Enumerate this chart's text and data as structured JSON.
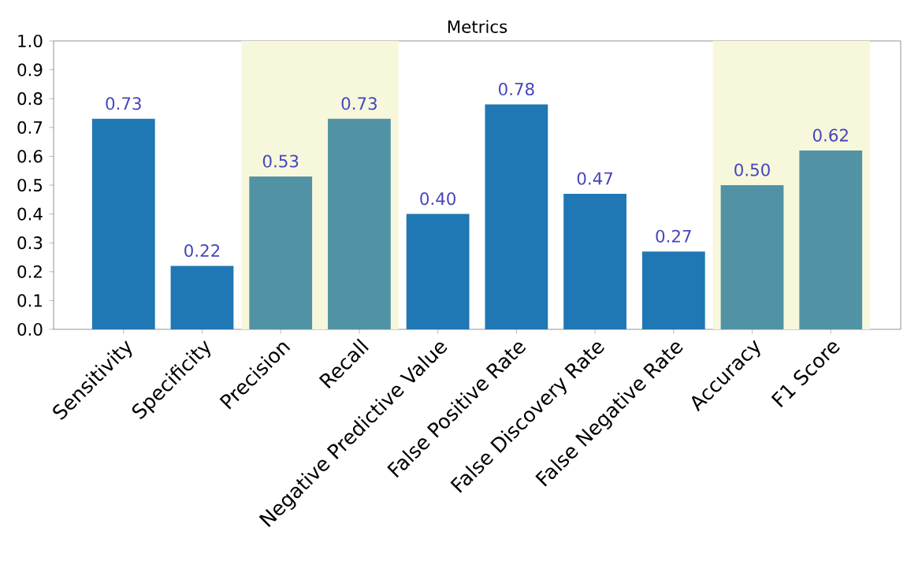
{
  "chart_data": {
    "type": "bar",
    "title": "Metrics",
    "categories": [
      "Sensitivity",
      "Specificity",
      "Precision",
      "Recall",
      "Negative Predictive Value",
      "False Positive Rate",
      "False Discovery Rate",
      "False Negative Rate",
      "Accuracy",
      "F1 Score"
    ],
    "values": [
      0.73,
      0.22,
      0.53,
      0.73,
      0.4,
      0.78,
      0.47,
      0.27,
      0.5,
      0.62
    ],
    "value_labels": [
      "0.73",
      "0.22",
      "0.53",
      "0.73",
      "0.40",
      "0.78",
      "0.47",
      "0.27",
      "0.50",
      "0.62"
    ],
    "colors": [
      "#1f77b4",
      "#1f77b4",
      "#5193a5",
      "#5193a5",
      "#1f77b4",
      "#1f77b4",
      "#1f77b4",
      "#1f77b4",
      "#5193a5",
      "#5193a5"
    ],
    "ylim": [
      0,
      1.0
    ],
    "yticks": [
      {
        "value": 0,
        "label": "0.0"
      },
      0.1,
      0.2,
      0.3,
      0.4,
      0.5,
      0.6,
      0.7,
      0.8,
      0.9,
      {
        "value": 1.0,
        "label": "1.0"
      }
    ],
    "bands": [
      {
        "axis": "x",
        "from": "Precision",
        "to": "Recall",
        "color": "#f7f7dc"
      },
      {
        "axis": "x",
        "from": "Accuracy",
        "to": "F1 Score",
        "color": "#f7f7dc"
      }
    ],
    "grid": false
  }
}
